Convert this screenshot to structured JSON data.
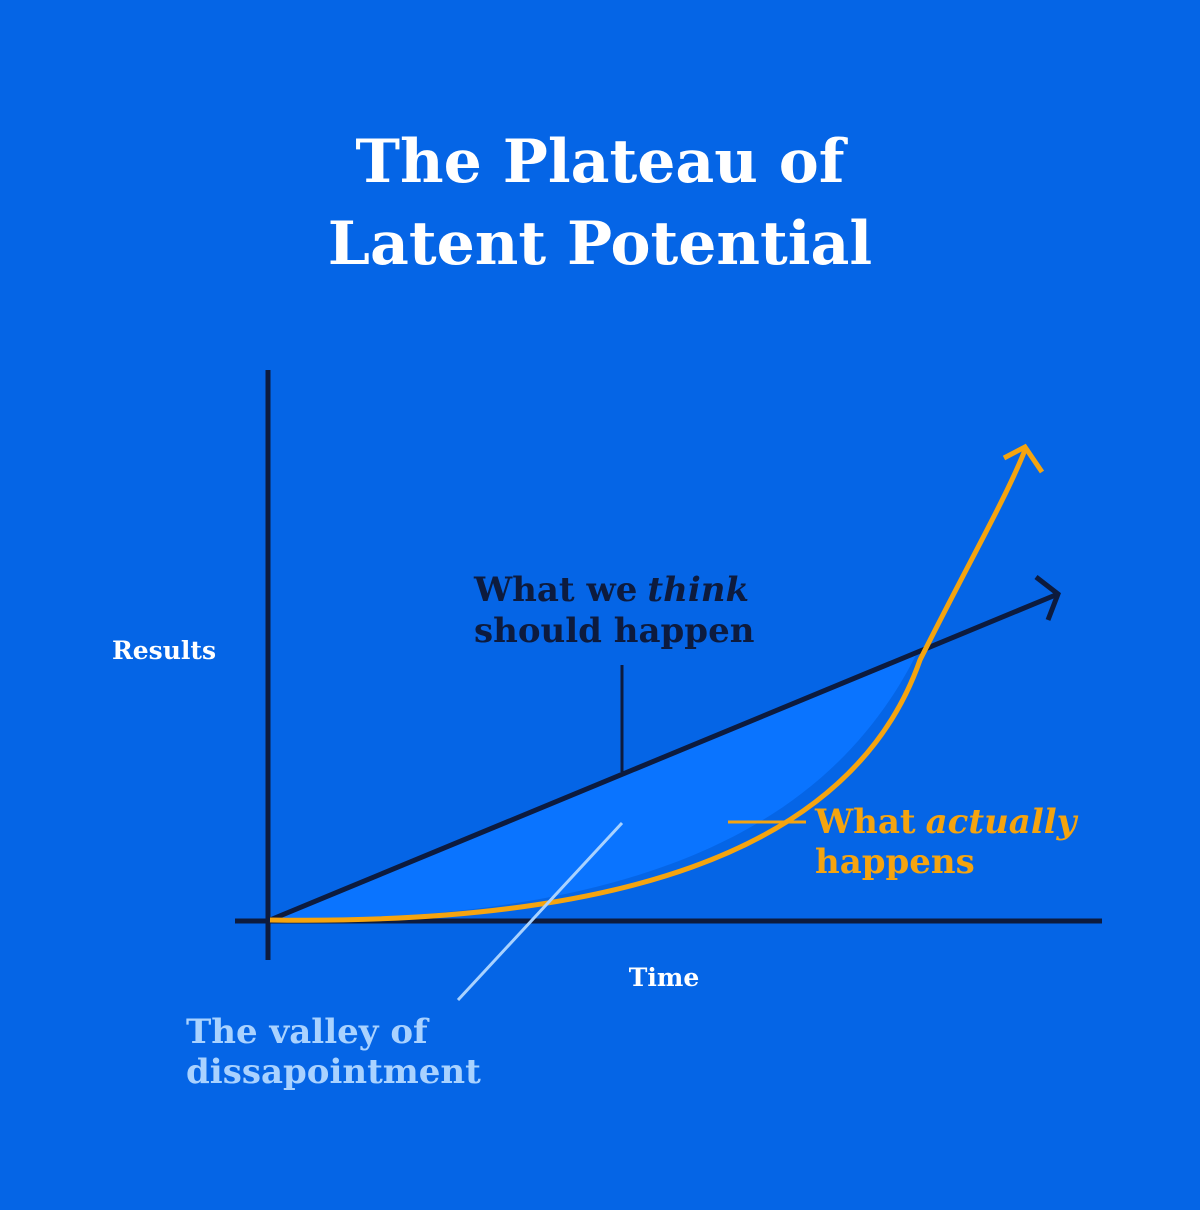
{
  "header": {
    "title_lines": [
      "The Plateau of",
      "Latent Potential"
    ]
  },
  "axes": {
    "y_label": "Results",
    "x_label": "Time"
  },
  "annotations": {
    "expected": {
      "lines": [
        [
          "What we",
          "think"
        ],
        [
          "should happen"
        ]
      ]
    },
    "actual": {
      "lines": [
        [
          "What",
          "actually"
        ],
        [
          "happens"
        ]
      ]
    },
    "valley": {
      "lines": [
        "The valley of",
        "dissapointment"
      ]
    }
  }
}
